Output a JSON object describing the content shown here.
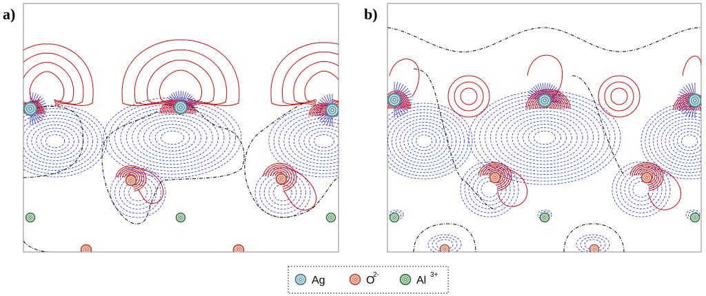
{
  "panels": [
    {
      "label": "a)"
    },
    {
      "label": "b)"
    }
  ],
  "legend": {
    "items": [
      {
        "name": "Ag",
        "sup": "",
        "color": "#5a9aae"
      },
      {
        "name": "O",
        "sup": "2-",
        "color": "#ee5a3c"
      },
      {
        "name": "Al",
        "sup": "3+",
        "color": "#3f8f4a"
      }
    ]
  },
  "colors": {
    "positive_contour": "#e00000",
    "negative_contour": "#2222dd",
    "zero_contour": "#111111"
  }
}
